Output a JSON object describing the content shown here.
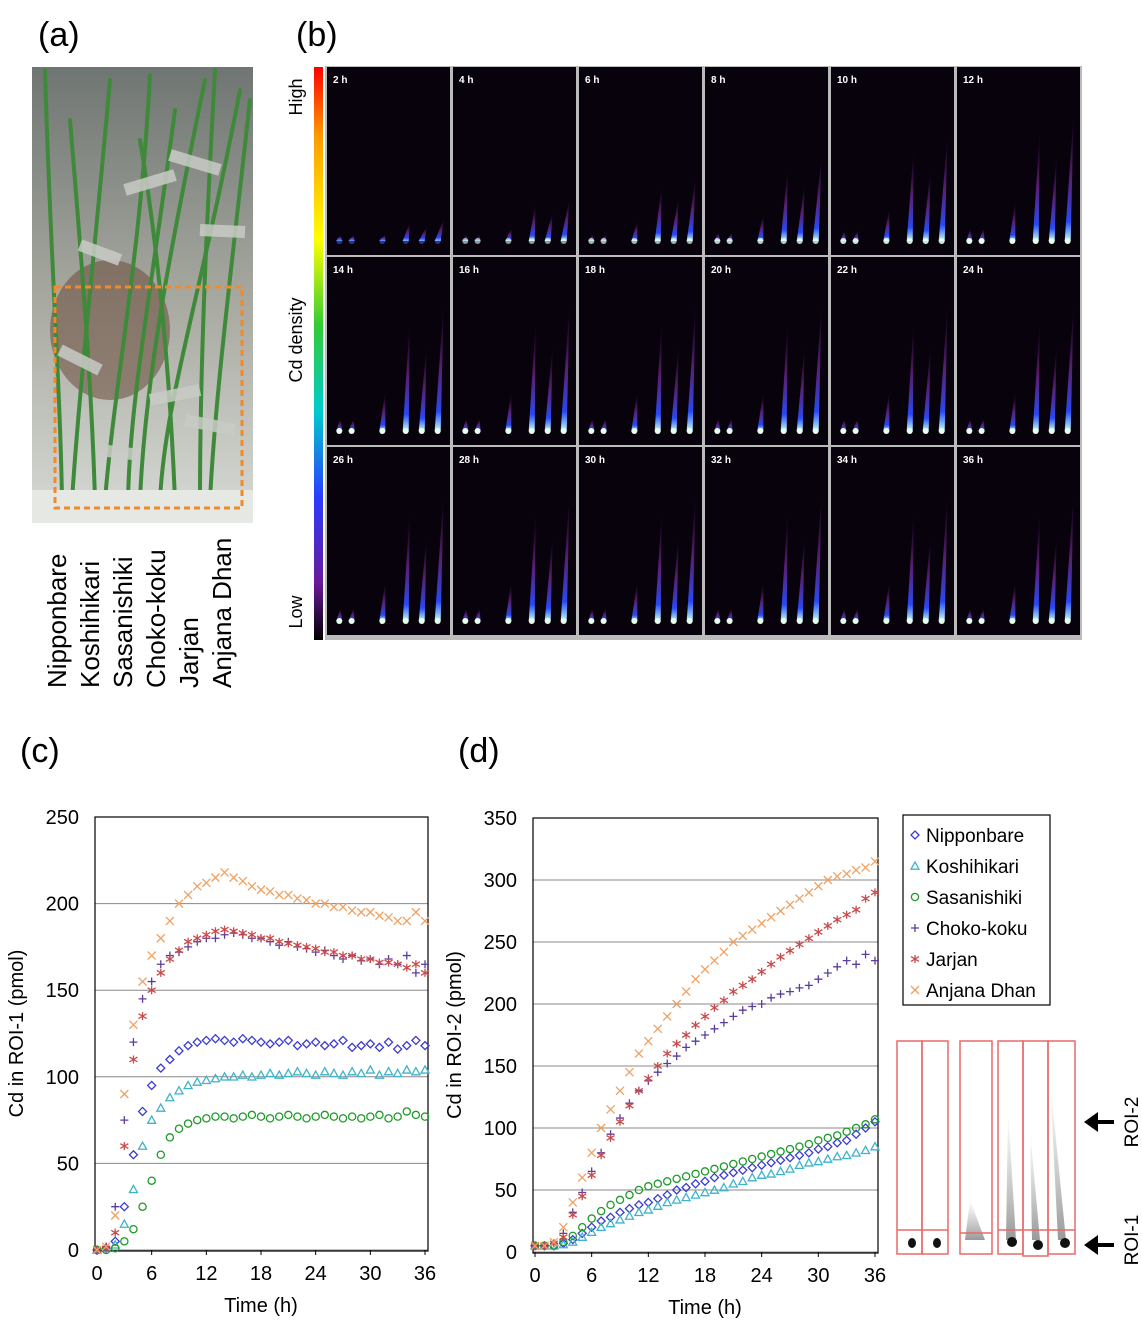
{
  "panel_a": {
    "label": "(a)",
    "varieties": [
      "Nipponbare",
      "Koshihikari",
      "Sasanishiki",
      "Choko-koku",
      "Jarjan",
      "Anjana Dhan"
    ]
  },
  "panel_b": {
    "label": "(b)",
    "colorbar": {
      "high": "High",
      "title": "Cd density",
      "low": "Low"
    },
    "times": [
      "2 h",
      "4 h",
      "6 h",
      "8 h",
      "10 h",
      "12 h",
      "14 h",
      "16 h",
      "18 h",
      "20 h",
      "22 h",
      "24 h",
      "26 h",
      "28 h",
      "30 h",
      "32 h",
      "34 h",
      "36 h"
    ]
  },
  "chart_data": [
    {
      "type": "scatter",
      "panel": "(c)",
      "x_label": "Time (h)",
      "y_label": "Cd in ROI-1 (pmol)",
      "x": [
        0,
        1,
        2,
        3,
        4,
        5,
        6,
        7,
        8,
        9,
        10,
        11,
        12,
        13,
        14,
        15,
        16,
        17,
        18,
        19,
        20,
        21,
        22,
        23,
        24,
        25,
        26,
        27,
        28,
        29,
        30,
        31,
        32,
        33,
        34,
        35,
        36
      ],
      "xlim": [
        0,
        36
      ],
      "xticks": [
        0,
        6,
        12,
        18,
        24,
        30,
        36
      ],
      "ylim": [
        0,
        250
      ],
      "yticks": [
        0,
        50,
        100,
        150,
        200,
        250
      ],
      "grid": true,
      "series": [
        {
          "color": "#3c3cd2",
          "marker": "diamond",
          "values": [
            0,
            1,
            5,
            25,
            55,
            80,
            95,
            105,
            110,
            115,
            118,
            120,
            121,
            122,
            121,
            120,
            122,
            121,
            120,
            119,
            120,
            121,
            118,
            119,
            120,
            118,
            119,
            121,
            117,
            118,
            119,
            117,
            120,
            116,
            118,
            121,
            118
          ]
        },
        {
          "color": "#3fb3c9",
          "marker": "triangle",
          "values": [
            0,
            1,
            3,
            15,
            35,
            60,
            75,
            82,
            88,
            92,
            95,
            97,
            98,
            99,
            100,
            100,
            101,
            100,
            101,
            102,
            101,
            102,
            103,
            102,
            101,
            103,
            102,
            101,
            103,
            102,
            104,
            101,
            103,
            102,
            104,
            103,
            104
          ]
        },
        {
          "color": "#1f9a2a",
          "marker": "circle",
          "values": [
            0,
            0,
            1,
            5,
            12,
            25,
            40,
            55,
            65,
            70,
            73,
            75,
            76,
            77,
            77,
            76,
            77,
            78,
            77,
            76,
            77,
            78,
            77,
            76,
            77,
            78,
            77,
            76,
            77,
            76,
            77,
            78,
            76,
            77,
            80,
            78,
            77
          ]
        },
        {
          "color": "#5c3d9e",
          "marker": "plus",
          "values": [
            0,
            2,
            25,
            75,
            120,
            145,
            155,
            165,
            170,
            172,
            175,
            178,
            180,
            180,
            182,
            183,
            182,
            180,
            180,
            178,
            176,
            178,
            175,
            174,
            172,
            173,
            170,
            168,
            170,
            167,
            168,
            165,
            168,
            165,
            170,
            160,
            165
          ]
        },
        {
          "color": "#c94b4b",
          "marker": "asterisk",
          "values": [
            0,
            1,
            10,
            60,
            110,
            135,
            150,
            160,
            168,
            173,
            178,
            180,
            182,
            184,
            185,
            184,
            183,
            182,
            180,
            180,
            178,
            177,
            176,
            175,
            174,
            172,
            172,
            170,
            170,
            168,
            168,
            166,
            166,
            165,
            163,
            165,
            160
          ]
        },
        {
          "color": "#f0a060",
          "marker": "cross",
          "values": [
            0,
            2,
            20,
            90,
            130,
            155,
            170,
            180,
            190,
            200,
            205,
            210,
            212,
            215,
            218,
            215,
            213,
            210,
            208,
            207,
            205,
            205,
            203,
            202,
            200,
            200,
            198,
            198,
            196,
            195,
            195,
            193,
            192,
            190,
            190,
            195,
            190
          ]
        }
      ]
    },
    {
      "type": "scatter",
      "panel": "(d)",
      "x_label": "Time (h)",
      "y_label": "Cd in ROI-2 (pmol)",
      "x": [
        0,
        1,
        2,
        3,
        4,
        5,
        6,
        7,
        8,
        9,
        10,
        11,
        12,
        13,
        14,
        15,
        16,
        17,
        18,
        19,
        20,
        21,
        22,
        23,
        24,
        25,
        26,
        27,
        28,
        29,
        30,
        31,
        32,
        33,
        34,
        35,
        36
      ],
      "xlim": [
        0,
        36
      ],
      "xticks": [
        0,
        6,
        12,
        18,
        24,
        30,
        36
      ],
      "ylim": [
        0,
        350
      ],
      "yticks": [
        0,
        50,
        100,
        150,
        200,
        250,
        300,
        350
      ],
      "grid": true,
      "legend": "outside-right",
      "series": [
        {
          "name": "Nipponbare",
          "color": "#3c3cd2",
          "marker": "diamond",
          "values": [
            5,
            5,
            5,
            7,
            10,
            15,
            20,
            25,
            28,
            32,
            35,
            38,
            40,
            43,
            46,
            50,
            52,
            55,
            57,
            60,
            62,
            64,
            66,
            68,
            70,
            72,
            74,
            76,
            78,
            80,
            83,
            85,
            88,
            90,
            95,
            100,
            105
          ]
        },
        {
          "name": "Koshihikari",
          "color": "#3fb3c9",
          "marker": "triangle",
          "values": [
            5,
            5,
            5,
            6,
            8,
            12,
            16,
            20,
            23,
            26,
            29,
            32,
            34,
            37,
            40,
            42,
            44,
            46,
            48,
            50,
            52,
            55,
            57,
            60,
            62,
            63,
            65,
            67,
            70,
            72,
            73,
            75,
            77,
            78,
            80,
            82,
            85
          ]
        },
        {
          "name": "Sasanishiki",
          "color": "#1f9a2a",
          "marker": "circle",
          "values": [
            5,
            5,
            5,
            8,
            13,
            20,
            27,
            33,
            38,
            42,
            46,
            50,
            53,
            55,
            57,
            59,
            61,
            63,
            65,
            67,
            69,
            71,
            73,
            75,
            77,
            79,
            81,
            83,
            85,
            87,
            90,
            92,
            94,
            97,
            100,
            103,
            107
          ]
        },
        {
          "name": "Choko-koku",
          "color": "#5c3d9e",
          "marker": "plus",
          "values": [
            5,
            5,
            7,
            15,
            32,
            48,
            65,
            80,
            95,
            108,
            120,
            130,
            138,
            145,
            152,
            158,
            165,
            170,
            175,
            180,
            185,
            190,
            195,
            198,
            200,
            205,
            208,
            210,
            213,
            215,
            220,
            225,
            230,
            235,
            232,
            240,
            235
          ]
        },
        {
          "name": "Jarjan",
          "color": "#c94b4b",
          "marker": "asterisk",
          "values": [
            5,
            5,
            7,
            12,
            30,
            45,
            62,
            78,
            92,
            105,
            118,
            130,
            140,
            150,
            160,
            168,
            175,
            183,
            190,
            197,
            203,
            210,
            215,
            220,
            226,
            232,
            238,
            243,
            248,
            253,
            258,
            263,
            268,
            272,
            276,
            285,
            290
          ]
        },
        {
          "name": "Anjana Dhan",
          "color": "#f0a060",
          "marker": "cross",
          "values": [
            5,
            5,
            8,
            20,
            40,
            60,
            80,
            100,
            115,
            130,
            145,
            160,
            170,
            180,
            190,
            200,
            210,
            220,
            228,
            235,
            242,
            250,
            255,
            260,
            265,
            270,
            275,
            280,
            285,
            290,
            295,
            300,
            303,
            305,
            308,
            310,
            315
          ]
        }
      ]
    }
  ],
  "roi_inset": {
    "labels": [
      "ROI-2",
      "ROI-1"
    ]
  }
}
